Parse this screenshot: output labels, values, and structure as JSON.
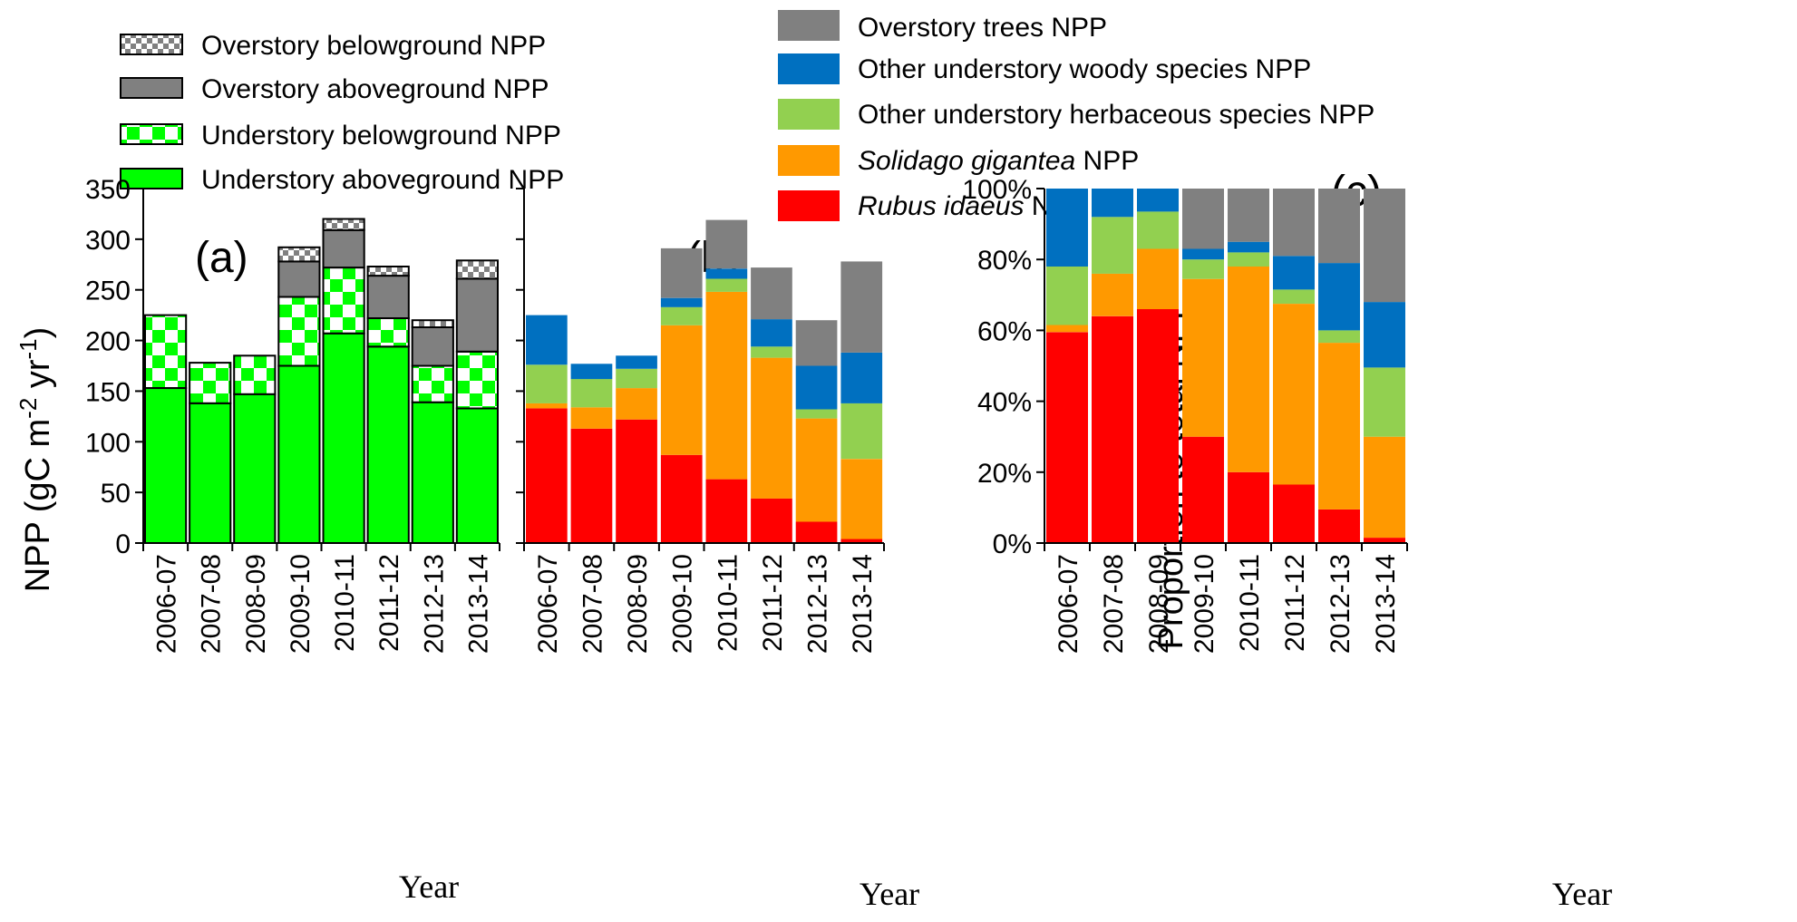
{
  "chart_data": [
    {
      "panel": "(a)",
      "type": "bar",
      "stacked": true,
      "categories": [
        "2006-07",
        "2007-08",
        "2008-09",
        "2009-10",
        "2010-11",
        "2011-12",
        "2012-13",
        "2013-14"
      ],
      "series": [
        {
          "name": "Understory aboveground NPP",
          "color": "#00ff00",
          "pattern": "solid",
          "values": [
            153,
            138,
            147,
            175,
            207,
            194,
            139,
            133
          ]
        },
        {
          "name": "Understory belowground NPP",
          "color": "#00ff00",
          "pattern": "checker",
          "values": [
            72,
            40,
            38,
            68,
            65,
            28,
            36,
            56
          ]
        },
        {
          "name": "Overstory aboveground NPP",
          "color": "#808080",
          "pattern": "solid",
          "values": [
            0,
            0,
            0,
            35,
            37,
            42,
            38,
            72
          ]
        },
        {
          "name": "Overstory belowground NPP",
          "color": "#808080",
          "pattern": "checker",
          "values": [
            0,
            0,
            0,
            14,
            11,
            9,
            7,
            18
          ]
        }
      ],
      "ylabel": "NPP (gC m⁻² yr⁻¹)",
      "ylabel_parts": {
        "main": "NPP (gC m",
        "exp1": "-2",
        "mid": " yr",
        "exp2": "-1",
        "end": ")"
      },
      "xlabel": "Year",
      "ylim": [
        0,
        350
      ],
      "yticks": [
        "0",
        "50",
        "100",
        "150",
        "200",
        "250",
        "300",
        "350"
      ],
      "legend": [
        "Overstory belowground NPP",
        "Overstory aboveground NPP",
        "Understory belowground NPP",
        "Understory aboveground NPP"
      ]
    },
    {
      "panel": "(b)",
      "type": "bar",
      "stacked": true,
      "categories": [
        "2006-07",
        "2007-08",
        "2008-09",
        "2009-10",
        "2010-11",
        "2011-12",
        "2012-13",
        "2013-14"
      ],
      "series": [
        {
          "name": "Rubus idaeus NPP",
          "italic": "Rubus idaeus",
          "color": "#ff0000",
          "values": [
            133,
            113,
            122,
            87,
            63,
            44,
            21,
            4
          ]
        },
        {
          "name": "Solidago gigantea NPP",
          "italic": "Solidago gigantea",
          "color": "#ff9900",
          "values": [
            5,
            21,
            31,
            128,
            185,
            139,
            102,
            79
          ]
        },
        {
          "name": "Other understory herbaceous species NPP",
          "color": "#92d050",
          "values": [
            38,
            28,
            19,
            18,
            13,
            11,
            9,
            55
          ]
        },
        {
          "name": "Other understory woody species NPP",
          "color": "#0070c0",
          "values": [
            49,
            15,
            13,
            9,
            10,
            27,
            43,
            50
          ]
        },
        {
          "name": "Overstory trees NPP",
          "color": "#808080",
          "values": [
            0,
            0,
            0,
            49,
            48,
            51,
            45,
            90
          ]
        }
      ],
      "xlabel": "Year",
      "ylim": [
        0,
        350
      ],
      "legend": [
        "Overstory trees NPP",
        "Other understory woody species NPP",
        "Other understory herbaceous species NPP",
        "Solidago gigantea NPP",
        "Rubus idaeus NPP"
      ]
    },
    {
      "panel": "(c)",
      "type": "bar",
      "stacked": true,
      "percent": true,
      "categories": [
        "2006-07",
        "2007-08",
        "2008-09",
        "2009-10",
        "2010-11",
        "2011-12",
        "2012-13",
        "2013-14"
      ],
      "series": [
        {
          "name": "Rubus idaeus NPP",
          "color": "#ff0000",
          "values": [
            59.5,
            64,
            66,
            30,
            20,
            16.5,
            9.5,
            1.5
          ]
        },
        {
          "name": "Solidago gigantea NPP",
          "color": "#ff9900",
          "values": [
            2,
            12,
            17,
            44.5,
            58,
            51,
            47,
            28.5
          ]
        },
        {
          "name": "Other understory herbaceous species NPP",
          "color": "#92d050",
          "values": [
            16.5,
            16,
            10.5,
            5.5,
            4,
            4,
            3.5,
            19.5
          ]
        },
        {
          "name": "Other understory woody species NPP",
          "color": "#0070c0",
          "values": [
            22,
            8,
            6.5,
            3,
            3,
            9.5,
            19,
            18.5
          ]
        },
        {
          "name": "Overstory trees NPP",
          "color": "#808080",
          "values": [
            0,
            0,
            0,
            17,
            15,
            19,
            21,
            32
          ]
        }
      ],
      "ylabel": "Proportion to total NPP",
      "xlabel": "Year",
      "ylim": [
        0,
        100
      ],
      "yticks": [
        "0%",
        "20%",
        "40%",
        "60%",
        "80%",
        "100%"
      ]
    }
  ]
}
